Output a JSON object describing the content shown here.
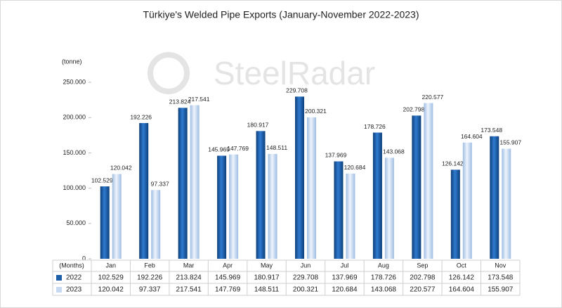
{
  "chart_data": {
    "type": "bar",
    "title": "Türkiye's Welded Pipe Exports (January-November 2022-2023)",
    "y_label": "(tonne)",
    "x_label": "(Months)",
    "watermark": "SteelRadar",
    "categories": [
      "Jan",
      "Feb",
      "Mar",
      "Apr",
      "May",
      "Jun",
      "Jul",
      "Aug",
      "Sep",
      "Oct",
      "Nov"
    ],
    "series": [
      {
        "name": "2022",
        "color": "#1f5fa8",
        "values": [
          102529,
          192226,
          213824,
          145969,
          180917,
          229708,
          137969,
          178726,
          202798,
          126142,
          173548
        ],
        "value_labels": [
          "102.529",
          "192.226",
          "213.824",
          "145.969",
          "180.917",
          "229.708",
          "137.969",
          "178.726",
          "202.798",
          "126.142",
          "173.548"
        ]
      },
      {
        "name": "2023",
        "color": "#c6d9f0",
        "values": [
          120042,
          97337,
          217541,
          147769,
          148511,
          200321,
          120684,
          143068,
          220577,
          164604,
          155907
        ],
        "value_labels": [
          "120.042",
          "97.337",
          "217.541",
          "147.769",
          "148.511",
          "200.321",
          "120.684",
          "143.068",
          "220.577",
          "164.604",
          "155.907"
        ]
      }
    ],
    "ylim": [
      0,
      250000
    ],
    "yticks": [
      0,
      {
        "value": 50000,
        "label": "50.000"
      },
      {
        "value": 100000,
        "label": "100.000"
      },
      {
        "value": 150000,
        "label": "150.000"
      },
      {
        "value": 200000,
        "label": "200.000"
      },
      {
        "value": 250000,
        "label": "250.000"
      }
    ]
  }
}
